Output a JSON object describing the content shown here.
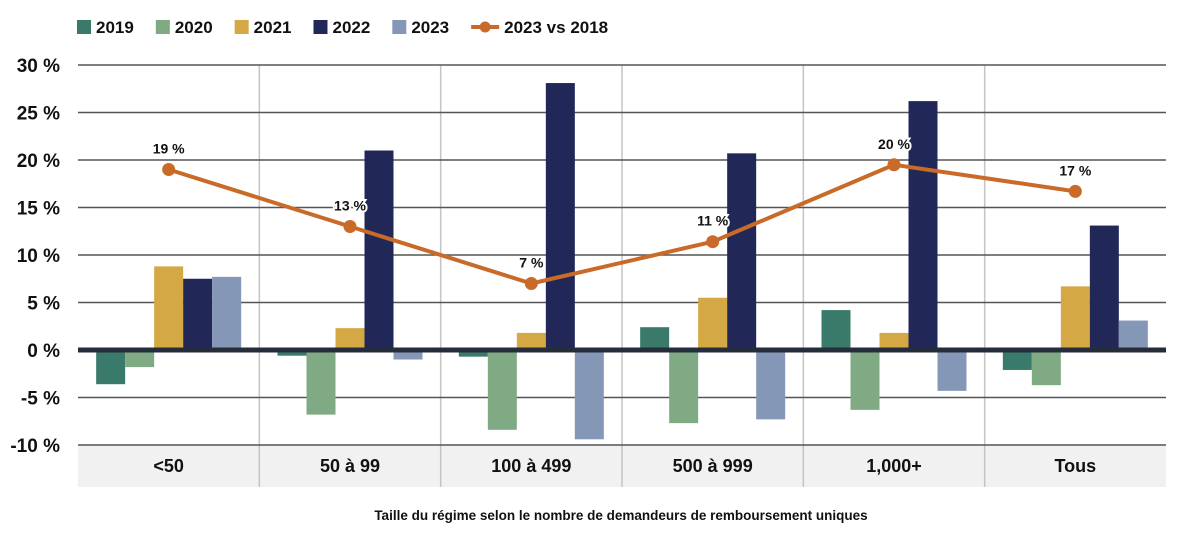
{
  "chart_data": {
    "type": "bar",
    "title": "",
    "xlabel": "Taille du régime selon le nombre de demandeurs de remboursement uniques",
    "ylabel": "",
    "ylim": [
      -10,
      30
    ],
    "yticks": [
      30,
      25,
      20,
      15,
      10,
      5,
      0,
      -5,
      -10
    ],
    "ytick_labels": [
      "30 %",
      "25 %",
      "20 %",
      "15 %",
      "10 %",
      "5 %",
      "0 %",
      "-5 %",
      "-10 %"
    ],
    "grid": true,
    "legend_position": "top-left",
    "categories": [
      "<50",
      "50 à 99",
      "100 à 499",
      "500 à 999",
      "1,000+",
      "Tous"
    ],
    "series": [
      {
        "name": "2019",
        "type": "bar",
        "color": "#3a7a6a",
        "values": [
          -3.6,
          -0.6,
          -0.7,
          2.4,
          4.2,
          -2.1
        ]
      },
      {
        "name": "2020",
        "type": "bar",
        "color": "#7faa84",
        "values": [
          -1.8,
          -6.8,
          -8.4,
          -7.7,
          -6.3,
          -3.7
        ]
      },
      {
        "name": "2021",
        "type": "bar",
        "color": "#d4a844",
        "values": [
          8.8,
          2.3,
          1.8,
          5.5,
          1.8,
          6.7
        ]
      },
      {
        "name": "2022",
        "type": "bar",
        "color": "#212858",
        "values": [
          7.5,
          21.0,
          28.1,
          20.7,
          26.2,
          13.1
        ]
      },
      {
        "name": "2023",
        "type": "bar",
        "color": "#8497b7",
        "values": [
          7.7,
          -1.0,
          -9.4,
          -7.3,
          -4.3,
          3.1
        ]
      },
      {
        "name": "2023 vs 2018",
        "type": "line",
        "color": "#c96a28",
        "values": [
          19,
          13,
          7,
          11.4,
          19.5,
          16.7
        ],
        "data_labels": [
          "19 %",
          "13 %",
          "7 %",
          "11 %",
          "20 %",
          "17 %"
        ]
      }
    ]
  }
}
